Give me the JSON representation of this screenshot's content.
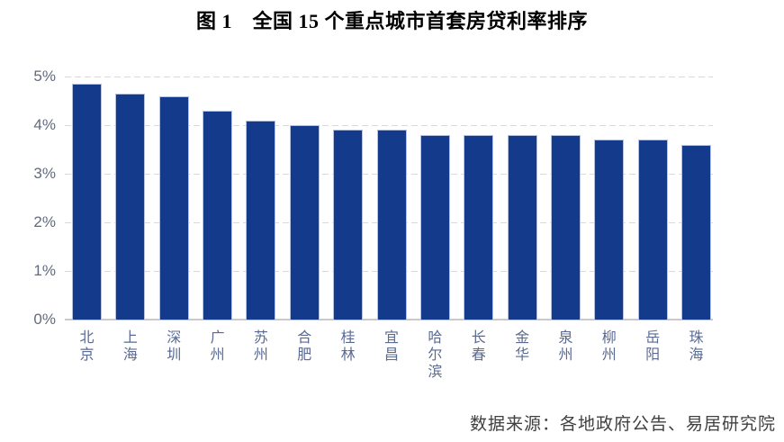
{
  "title": "图 1　全国 15 个重点城市首套房贷利率排序",
  "footer": {
    "source_label": "数据来源：各地政府公告、易居研究院"
  },
  "chart_data": {
    "type": "bar",
    "title": "图 1　全国 15 个重点城市首套房贷利率排序",
    "categories": [
      "北京",
      "上海",
      "深圳",
      "广州",
      "苏州",
      "合肥",
      "桂林",
      "宜昌",
      "哈尔滨",
      "长春",
      "金华",
      "泉州",
      "柳州",
      "岳阳",
      "珠海"
    ],
    "values": [
      4.85,
      4.65,
      4.6,
      4.3,
      4.1,
      4.0,
      3.9,
      3.9,
      3.8,
      3.8,
      3.8,
      3.8,
      3.7,
      3.7,
      3.6
    ],
    "unit": "%",
    "xlabel": "",
    "ylabel": "",
    "ylim": [
      0,
      5
    ],
    "ytick_labels": [
      "0%",
      "1%",
      "2%",
      "3%",
      "4%",
      "5%"
    ],
    "grid": "horizontal-dashed",
    "legend": "none",
    "source": "数据来源：各地政府公告、易居研究院",
    "colors": {
      "bar": "#143A8C",
      "bar_border": "#B7C2DE",
      "grid": "#D9D9D9",
      "axis_line": "#C9C9C9",
      "y_labels": "#616B7E",
      "x_labels": "#5A6A92",
      "title": "#000000",
      "source_text": "#404040",
      "background": "#FFFFFF"
    }
  }
}
